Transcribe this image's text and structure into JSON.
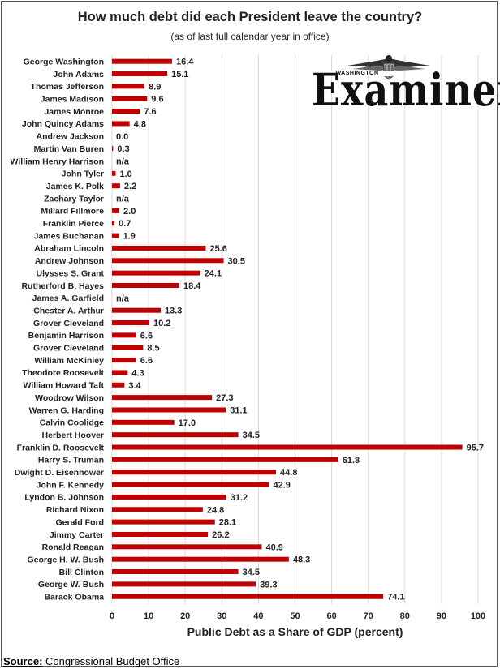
{
  "chart_data": {
    "type": "bar",
    "orientation": "horizontal",
    "title": "How much debt did each President leave the country?",
    "subtitle": "(as of last full calendar year in office)",
    "xlabel": "Public Debt as a Share of GDP (percent)",
    "ylabel": "",
    "xlim": [
      0,
      100
    ],
    "xticks": [
      0,
      10,
      20,
      30,
      40,
      50,
      60,
      70,
      80,
      90,
      100
    ],
    "grid": true,
    "bar_color": "#c00000",
    "categories": [
      "George Washington",
      "John Adams",
      "Thomas Jefferson",
      "James Madison",
      "James Monroe",
      "John Quincy Adams",
      "Andrew Jackson",
      "Martin Van Buren",
      "William Henry Harrison",
      "John Tyler",
      "James K. Polk",
      "Zachary Taylor",
      "Millard Fillmore",
      "Franklin Pierce",
      "James Buchanan",
      "Abraham Lincoln",
      "Andrew Johnson",
      "Ulysses S. Grant",
      "Rutherford B. Hayes",
      "James A. Garfield",
      "Chester A. Arthur",
      "Grover Cleveland",
      "Benjamin Harrison",
      "Grover Cleveland",
      "William McKinley",
      "Theodore Roosevelt",
      "William Howard Taft",
      "Woodrow Wilson",
      "Warren G. Harding",
      "Calvin Coolidge",
      "Herbert Hoover",
      "Franklin D. Roosevelt",
      "Harry S. Truman",
      "Dwight D. Eisenhower",
      "John F. Kennedy",
      "Lyndon B. Johnson",
      "Richard Nixon",
      "Gerald Ford",
      "Jimmy Carter",
      "Ronald Reagan",
      "George H. W. Bush",
      "Bill Clinton",
      "George W. Bush",
      "Barack Obama"
    ],
    "values": [
      16.4,
      15.1,
      8.9,
      9.6,
      7.6,
      4.8,
      0.0,
      0.3,
      null,
      1.0,
      2.2,
      null,
      2.0,
      0.7,
      1.9,
      25.6,
      30.5,
      24.1,
      18.4,
      null,
      13.3,
      10.2,
      6.6,
      8.5,
      6.6,
      4.3,
      3.4,
      27.3,
      31.1,
      17.0,
      34.5,
      95.7,
      61.8,
      44.8,
      42.9,
      31.2,
      24.8,
      28.1,
      26.2,
      40.9,
      48.3,
      34.5,
      39.3,
      74.1
    ],
    "data_labels": [
      "16.4",
      "15.1",
      "8.9",
      "9.6",
      "7.6",
      "4.8",
      "0.0",
      "0.3",
      "n/a",
      "1.0",
      "2.2",
      "n/a",
      "2.0",
      "0.7",
      "1.9",
      "25.6",
      "30.5",
      "24.1",
      "18.4",
      "n/a",
      "13.3",
      "10.2",
      "6.6",
      "8.5",
      "6.6",
      "4.3",
      "3.4",
      "27.3",
      "31.1",
      "17.0",
      "34.5",
      "95.7",
      "61.8",
      "44.8",
      "42.9",
      "31.2",
      "24.8",
      "28.1",
      "26.2",
      "40.9",
      "48.3",
      "34.5",
      "39.3",
      "74.1"
    ]
  },
  "logo": {
    "small_text": "WASHINGTON",
    "word": "Examiner",
    "icon": "eagle-icon"
  },
  "source": {
    "label": "Source:",
    "text": " Congressional Budget Office"
  }
}
